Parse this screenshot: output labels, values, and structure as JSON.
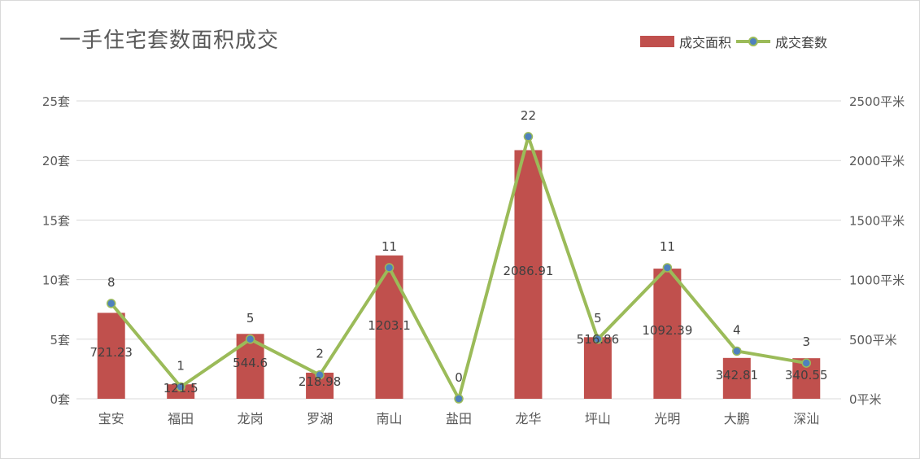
{
  "chart_data": {
    "type": "bar+line",
    "title": "一手住宅套数面积成交",
    "categories": [
      "宝安",
      "福田",
      "龙岗",
      "罗湖",
      "南山",
      "盐田",
      "龙华",
      "坪山",
      "光明",
      "大鹏",
      "深汕"
    ],
    "series": [
      {
        "name": "成交面积",
        "type": "bar",
        "axis": "right",
        "values": [
          721.23,
          121.5,
          544.6,
          218.98,
          1203.1,
          0,
          2086.91,
          516.86,
          1092.39,
          342.81,
          340.55
        ],
        "labels": [
          "721.23",
          "121.5",
          "544.6",
          "218.98",
          "1203.1",
          "",
          "2086.91",
          "516.86",
          "1092.39",
          "342.81",
          "340.55"
        ],
        "color": "#c0504d"
      },
      {
        "name": "成交套数",
        "type": "line",
        "axis": "left",
        "values": [
          8,
          1,
          5,
          2,
          11,
          0,
          22,
          5,
          11,
          4,
          3
        ],
        "labels": [
          "8",
          "1",
          "5",
          "2",
          "11",
          "0",
          "22",
          "5",
          "11",
          "4",
          "3"
        ],
        "color": "#9bbb59",
        "marker_color": "#4f81bd"
      }
    ],
    "y_left": {
      "ylim": [
        0,
        25
      ],
      "ticks": [
        "0套",
        "5套",
        "10套",
        "15套",
        "20套",
        "25套"
      ]
    },
    "y_right": {
      "ylim": [
        0,
        2500
      ],
      "ticks": [
        "0平米",
        "500平米",
        "1000平米",
        "1500平米",
        "2000平米",
        "2500平米"
      ]
    },
    "grid": true,
    "legend_position": "top-right"
  }
}
